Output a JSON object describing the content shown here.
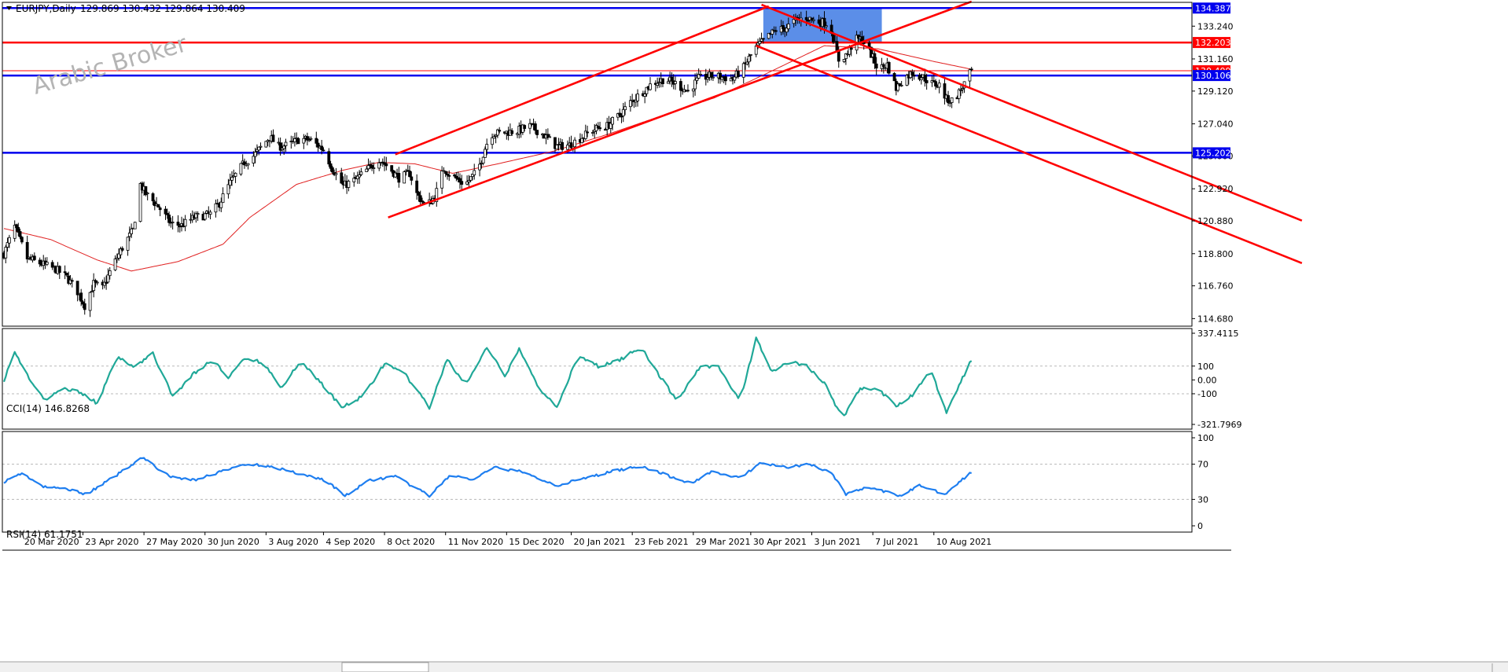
{
  "header": {
    "symbol_timeframe": "EURJPY,Daily",
    "ohlc": "129.869 130.432 129.864 130.409"
  },
  "watermark": "Arabic Broker",
  "colors": {
    "bull": "#ffffff",
    "bear": "#000000",
    "candle_outline": "#000000",
    "sma": "#e02020",
    "support_resistance": "#0000ee",
    "key_level": "#ff0000",
    "trendline": "#ff0000",
    "zone": "#5b8ee8",
    "cci": "#20a898",
    "rsi": "#1e7ef0",
    "grid_dash": "#b8b8b8",
    "frame": "#000000",
    "watermark": "#b4b4b4"
  },
  "price_axis": {
    "labels": [
      "133.240",
      "131.160",
      "129.120",
      "127.040",
      "125.000",
      "122.920",
      "120.880",
      "118.800",
      "116.760",
      "114.680"
    ],
    "range": [
      114.2,
      134.75
    ]
  },
  "levels": [
    {
      "name": "resistance-134-387",
      "price": 134.387,
      "label": "134.387",
      "kind": "blue"
    },
    {
      "name": "key-level-132-203",
      "price": 132.203,
      "label": "132.203",
      "kind": "red"
    },
    {
      "name": "current-price",
      "price": 130.409,
      "label": "130.409",
      "kind": "current"
    },
    {
      "name": "support-130-106",
      "price": 130.106,
      "label": "130.106",
      "kind": "blue"
    },
    {
      "name": "support-125-202",
      "price": 125.202,
      "label": "125.202",
      "kind": "blue"
    }
  ],
  "trendlines": [
    {
      "name": "ascending-channel-upper",
      "from": {
        "date": "2020-10-14",
        "price": 125.1
      },
      "to": {
        "date": "2021-05-10",
        "price": 134.5
      }
    },
    {
      "name": "ascending-channel-lower",
      "from": {
        "date": "2020-10-10",
        "price": 121.1
      },
      "to": {
        "date": "2021-08-31",
        "price": 134.8
      }
    },
    {
      "name": "descending-channel-upper",
      "from": {
        "date": "2021-05-06",
        "price": 134.6
      },
      "to": {
        "date": "2022-03-03",
        "price": 120.9
      }
    },
    {
      "name": "descending-channel-lower",
      "from": {
        "date": "2021-05-03",
        "price": 132.0
      },
      "to": {
        "date": "2022-03-03",
        "price": 118.2
      }
    }
  ],
  "zone": {
    "from_date": "2021-05-07",
    "to_date": "2021-07-12",
    "price_top": 134.387,
    "price_bottom": 132.203
  },
  "price_path": [
    {
      "date": "2020-03-10",
      "price": 118.8
    },
    {
      "date": "2020-03-16",
      "price": 120.5
    },
    {
      "date": "2020-03-23",
      "price": 118.5
    },
    {
      "date": "2020-03-30",
      "price": 118.2
    },
    {
      "date": "2020-04-08",
      "price": 117.8
    },
    {
      "date": "2020-04-14",
      "price": 117.3
    },
    {
      "date": "2020-04-20",
      "price": 116.4
    },
    {
      "date": "2020-04-24",
      "price": 115.5
    },
    {
      "date": "2020-04-29",
      "price": 116.9
    },
    {
      "date": "2020-05-04",
      "price": 116.6
    },
    {
      "date": "2020-05-09",
      "price": 117.9
    },
    {
      "date": "2020-05-16",
      "price": 119.4
    },
    {
      "date": "2020-05-21",
      "price": 120.3
    },
    {
      "date": "2020-05-25",
      "price": 123.2
    },
    {
      "date": "2020-05-28",
      "price": 122.6
    },
    {
      "date": "2020-06-04",
      "price": 121.8
    },
    {
      "date": "2020-06-11",
      "price": 120.7
    },
    {
      "date": "2020-06-17",
      "price": 120.6
    },
    {
      "date": "2020-06-24",
      "price": 121.1
    },
    {
      "date": "2020-07-03",
      "price": 121.3
    },
    {
      "date": "2020-07-08",
      "price": 122.0
    },
    {
      "date": "2020-07-14",
      "price": 123.3
    },
    {
      "date": "2020-07-22",
      "price": 124.6
    },
    {
      "date": "2020-07-27",
      "price": 125.0
    },
    {
      "date": "2020-08-05",
      "price": 126.2
    },
    {
      "date": "2020-08-10",
      "price": 125.6
    },
    {
      "date": "2020-08-16",
      "price": 125.7
    },
    {
      "date": "2020-08-22",
      "price": 126.1
    },
    {
      "date": "2020-08-28",
      "price": 126.0
    },
    {
      "date": "2020-09-04",
      "price": 125.4
    },
    {
      "date": "2020-09-09",
      "price": 124.2
    },
    {
      "date": "2020-09-15",
      "price": 123.1
    },
    {
      "date": "2020-09-22",
      "price": 123.5
    },
    {
      "date": "2020-09-29",
      "price": 124.2
    },
    {
      "date": "2020-10-05",
      "price": 124.8
    },
    {
      "date": "2020-10-11",
      "price": 124.2
    },
    {
      "date": "2020-10-16",
      "price": 123.6
    },
    {
      "date": "2020-10-22",
      "price": 123.9
    },
    {
      "date": "2020-10-26",
      "price": 122.6
    },
    {
      "date": "2020-10-31",
      "price": 121.8
    },
    {
      "date": "2020-11-05",
      "price": 122.4
    },
    {
      "date": "2020-11-10",
      "price": 124.2
    },
    {
      "date": "2020-11-15",
      "price": 123.7
    },
    {
      "date": "2020-11-22",
      "price": 123.2
    },
    {
      "date": "2020-11-29",
      "price": 124.1
    },
    {
      "date": "2020-12-03",
      "price": 125.5
    },
    {
      "date": "2020-12-06",
      "price": 126.4
    },
    {
      "date": "2020-12-14",
      "price": 126.5
    },
    {
      "date": "2020-12-21",
      "price": 126.6
    },
    {
      "date": "2020-12-28",
      "price": 126.9
    },
    {
      "date": "2021-01-04",
      "price": 126.4
    },
    {
      "date": "2021-01-12",
      "price": 125.6
    },
    {
      "date": "2021-01-19",
      "price": 125.7
    },
    {
      "date": "2021-01-26",
      "price": 126.2
    },
    {
      "date": "2021-02-02",
      "price": 126.7
    },
    {
      "date": "2021-02-09",
      "price": 126.9
    },
    {
      "date": "2021-02-16",
      "price": 127.6
    },
    {
      "date": "2021-02-22",
      "price": 128.4
    },
    {
      "date": "2021-03-01",
      "price": 129.1
    },
    {
      "date": "2021-03-06",
      "price": 129.6
    },
    {
      "date": "2021-03-13",
      "price": 129.9
    },
    {
      "date": "2021-03-19",
      "price": 129.6
    },
    {
      "date": "2021-03-26",
      "price": 129.1
    },
    {
      "date": "2021-04-01",
      "price": 129.9
    },
    {
      "date": "2021-04-08",
      "price": 130.1
    },
    {
      "date": "2021-04-14",
      "price": 130.0
    },
    {
      "date": "2021-04-20",
      "price": 129.9
    },
    {
      "date": "2021-04-26",
      "price": 130.6
    },
    {
      "date": "2021-05-02",
      "price": 131.8
    },
    {
      "date": "2021-05-08",
      "price": 132.4
    },
    {
      "date": "2021-05-14",
      "price": 133.0
    },
    {
      "date": "2021-05-19",
      "price": 133.1
    },
    {
      "date": "2021-05-25",
      "price": 133.6
    },
    {
      "date": "2021-05-31",
      "price": 133.8
    },
    {
      "date": "2021-06-04",
      "price": 133.6
    },
    {
      "date": "2021-06-08",
      "price": 133.5
    },
    {
      "date": "2021-06-13",
      "price": 133.4
    },
    {
      "date": "2021-06-18",
      "price": 131.1
    },
    {
      "date": "2021-06-23",
      "price": 131.5
    },
    {
      "date": "2021-06-27",
      "price": 132.4
    },
    {
      "date": "2021-07-01",
      "price": 132.4
    },
    {
      "date": "2021-07-05",
      "price": 131.7
    },
    {
      "date": "2021-07-10",
      "price": 130.5
    },
    {
      "date": "2021-07-15",
      "price": 130.8
    },
    {
      "date": "2021-07-20",
      "price": 129.3
    },
    {
      "date": "2021-07-24",
      "price": 129.9
    },
    {
      "date": "2021-07-29",
      "price": 130.3
    },
    {
      "date": "2021-08-04",
      "price": 130.0
    },
    {
      "date": "2021-08-09",
      "price": 129.6
    },
    {
      "date": "2021-08-13",
      "price": 129.5
    },
    {
      "date": "2021-08-17",
      "price": 128.6
    },
    {
      "date": "2021-08-21",
      "price": 128.5
    },
    {
      "date": "2021-08-26",
      "price": 129.4
    },
    {
      "date": "2021-08-31",
      "price": 130.41
    }
  ],
  "sma_path": [
    {
      "date": "2020-03-10",
      "price": 120.4
    },
    {
      "date": "2020-04-05",
      "price": 119.7
    },
    {
      "date": "2020-05-01",
      "price": 118.4
    },
    {
      "date": "2020-05-20",
      "price": 117.7
    },
    {
      "date": "2020-06-15",
      "price": 118.3
    },
    {
      "date": "2020-07-10",
      "price": 119.4
    },
    {
      "date": "2020-07-25",
      "price": 121.1
    },
    {
      "date": "2020-08-20",
      "price": 123.2
    },
    {
      "date": "2020-09-15",
      "price": 124.1
    },
    {
      "date": "2020-10-05",
      "price": 124.6
    },
    {
      "date": "2020-10-25",
      "price": 124.5
    },
    {
      "date": "2020-11-15",
      "price": 123.9
    },
    {
      "date": "2020-12-10",
      "price": 124.5
    },
    {
      "date": "2021-01-10",
      "price": 125.3
    },
    {
      "date": "2021-02-10",
      "price": 126.4
    },
    {
      "date": "2021-03-10",
      "price": 127.5
    },
    {
      "date": "2021-04-10",
      "price": 128.7
    },
    {
      "date": "2021-05-10",
      "price": 130.3
    },
    {
      "date": "2021-06-10",
      "price": 132.0
    },
    {
      "date": "2021-07-10",
      "price": 131.8
    },
    {
      "date": "2021-08-10",
      "price": 131.0
    },
    {
      "date": "2021-08-31",
      "price": 130.5
    }
  ],
  "cci_panel": {
    "title": "CCI(14) 146.8268",
    "axis": [
      "337.4115",
      "100",
      "0.00",
      "-100",
      "-321.7969"
    ],
    "top": 337.4115,
    "bottom": -321.7969,
    "dashed_levels": [
      100,
      -100
    ],
    "path": [
      {
        "date": "2020-03-10",
        "v": 0
      },
      {
        "date": "2020-03-16",
        "v": 200
      },
      {
        "date": "2020-03-26",
        "v": -30
      },
      {
        "date": "2020-04-02",
        "v": -150
      },
      {
        "date": "2020-04-12",
        "v": -60
      },
      {
        "date": "2020-04-22",
        "v": -90
      },
      {
        "date": "2020-05-01",
        "v": -170
      },
      {
        "date": "2020-05-12",
        "v": 160
      },
      {
        "date": "2020-05-22",
        "v": 100
      },
      {
        "date": "2020-06-01",
        "v": 190
      },
      {
        "date": "2020-06-12",
        "v": -120
      },
      {
        "date": "2020-06-24",
        "v": 50
      },
      {
        "date": "2020-07-05",
        "v": 150
      },
      {
        "date": "2020-07-12",
        "v": 0
      },
      {
        "date": "2020-07-22",
        "v": 160
      },
      {
        "date": "2020-08-02",
        "v": 120
      },
      {
        "date": "2020-08-12",
        "v": -60
      },
      {
        "date": "2020-08-22",
        "v": 140
      },
      {
        "date": "2020-09-04",
        "v": -40
      },
      {
        "date": "2020-09-14",
        "v": -200
      },
      {
        "date": "2020-09-26",
        "v": -120
      },
      {
        "date": "2020-10-08",
        "v": 120
      },
      {
        "date": "2020-10-20",
        "v": 30
      },
      {
        "date": "2020-11-02",
        "v": -200
      },
      {
        "date": "2020-11-12",
        "v": 150
      },
      {
        "date": "2020-11-22",
        "v": -40
      },
      {
        "date": "2020-12-04",
        "v": 230
      },
      {
        "date": "2020-12-14",
        "v": 30
      },
      {
        "date": "2020-12-22",
        "v": 220
      },
      {
        "date": "2021-01-02",
        "v": -60
      },
      {
        "date": "2021-01-12",
        "v": -190
      },
      {
        "date": "2021-01-24",
        "v": 170
      },
      {
        "date": "2021-02-04",
        "v": 100
      },
      {
        "date": "2021-02-14",
        "v": 130
      },
      {
        "date": "2021-02-28",
        "v": 240
      },
      {
        "date": "2021-03-10",
        "v": 30
      },
      {
        "date": "2021-03-20",
        "v": -150
      },
      {
        "date": "2021-04-02",
        "v": 100
      },
      {
        "date": "2021-04-12",
        "v": 100
      },
      {
        "date": "2021-04-24",
        "v": -160
      },
      {
        "date": "2021-05-03",
        "v": 300
      },
      {
        "date": "2021-05-12",
        "v": 60
      },
      {
        "date": "2021-05-22",
        "v": 130
      },
      {
        "date": "2021-05-31",
        "v": 100
      },
      {
        "date": "2021-06-10",
        "v": -20
      },
      {
        "date": "2021-06-20",
        "v": -280
      },
      {
        "date": "2021-06-30",
        "v": -60
      },
      {
        "date": "2021-07-10",
        "v": -70
      },
      {
        "date": "2021-07-20",
        "v": -190
      },
      {
        "date": "2021-07-30",
        "v": -100
      },
      {
        "date": "2021-08-08",
        "v": 80
      },
      {
        "date": "2021-08-17",
        "v": -230
      },
      {
        "date": "2021-08-31",
        "v": 147
      }
    ]
  },
  "rsi_panel": {
    "title": "RSI(14) 61.1751",
    "axis": [
      "100",
      "70",
      "30",
      "0"
    ],
    "top": 100,
    "bottom": 0,
    "dashed_levels": [
      70,
      30
    ],
    "path": [
      {
        "date": "2020-03-10",
        "v": 50
      },
      {
        "date": "2020-03-20",
        "v": 60
      },
      {
        "date": "2020-04-01",
        "v": 44
      },
      {
        "date": "2020-04-14",
        "v": 42
      },
      {
        "date": "2020-04-25",
        "v": 36
      },
      {
        "date": "2020-05-10",
        "v": 55
      },
      {
        "date": "2020-05-26",
        "v": 78
      },
      {
        "date": "2020-06-10",
        "v": 56
      },
      {
        "date": "2020-06-24",
        "v": 52
      },
      {
        "date": "2020-07-10",
        "v": 62
      },
      {
        "date": "2020-07-22",
        "v": 70
      },
      {
        "date": "2020-08-05",
        "v": 68
      },
      {
        "date": "2020-08-20",
        "v": 60
      },
      {
        "date": "2020-09-05",
        "v": 52
      },
      {
        "date": "2020-09-16",
        "v": 34
      },
      {
        "date": "2020-09-30",
        "v": 52
      },
      {
        "date": "2020-10-14",
        "v": 56
      },
      {
        "date": "2020-11-02",
        "v": 34
      },
      {
        "date": "2020-11-14",
        "v": 58
      },
      {
        "date": "2020-11-26",
        "v": 52
      },
      {
        "date": "2020-12-08",
        "v": 66
      },
      {
        "date": "2020-12-22",
        "v": 62
      },
      {
        "date": "2021-01-12",
        "v": 46
      },
      {
        "date": "2021-01-28",
        "v": 54
      },
      {
        "date": "2021-02-12",
        "v": 62
      },
      {
        "date": "2021-02-28",
        "v": 68
      },
      {
        "date": "2021-03-16",
        "v": 56
      },
      {
        "date": "2021-03-28",
        "v": 48
      },
      {
        "date": "2021-04-08",
        "v": 62
      },
      {
        "date": "2021-04-24",
        "v": 54
      },
      {
        "date": "2021-05-06",
        "v": 72
      },
      {
        "date": "2021-05-20",
        "v": 66
      },
      {
        "date": "2021-06-02",
        "v": 70
      },
      {
        "date": "2021-06-14",
        "v": 60
      },
      {
        "date": "2021-06-22",
        "v": 36
      },
      {
        "date": "2021-07-04",
        "v": 44
      },
      {
        "date": "2021-07-22",
        "v": 34
      },
      {
        "date": "2021-08-02",
        "v": 46
      },
      {
        "date": "2021-08-16",
        "v": 36
      },
      {
        "date": "2021-08-31",
        "v": 61
      }
    ]
  },
  "time_axis": {
    "start": "2020-03-10",
    "end": "2021-09-01",
    "labels": [
      {
        "date": "2020-03-20",
        "text": "20 Mar 2020"
      },
      {
        "date": "2020-04-23",
        "text": "23 Apr 2020"
      },
      {
        "date": "2020-05-27",
        "text": "27 May 2020"
      },
      {
        "date": "2020-06-30",
        "text": "30 Jun 2020"
      },
      {
        "date": "2020-08-03",
        "text": "3 Aug 2020"
      },
      {
        "date": "2020-09-04",
        "text": "4 Sep 2020"
      },
      {
        "date": "2020-10-08",
        "text": "8 Oct 2020"
      },
      {
        "date": "2020-11-11",
        "text": "11 Nov 2020"
      },
      {
        "date": "2020-12-15",
        "text": "15 Dec 2020"
      },
      {
        "date": "2021-01-20",
        "text": "20 Jan 2021"
      },
      {
        "date": "2021-02-23",
        "text": "23 Feb 2021"
      },
      {
        "date": "2021-03-29",
        "text": "29 Mar 2021"
      },
      {
        "date": "2021-04-30",
        "text": "30 Apr 2021"
      },
      {
        "date": "2021-06-03",
        "text": "3 Jun 2021"
      },
      {
        "date": "2021-07-07",
        "text": "7 Jul 2021"
      },
      {
        "date": "2021-08-10",
        "text": "10 Aug 2021"
      }
    ]
  }
}
